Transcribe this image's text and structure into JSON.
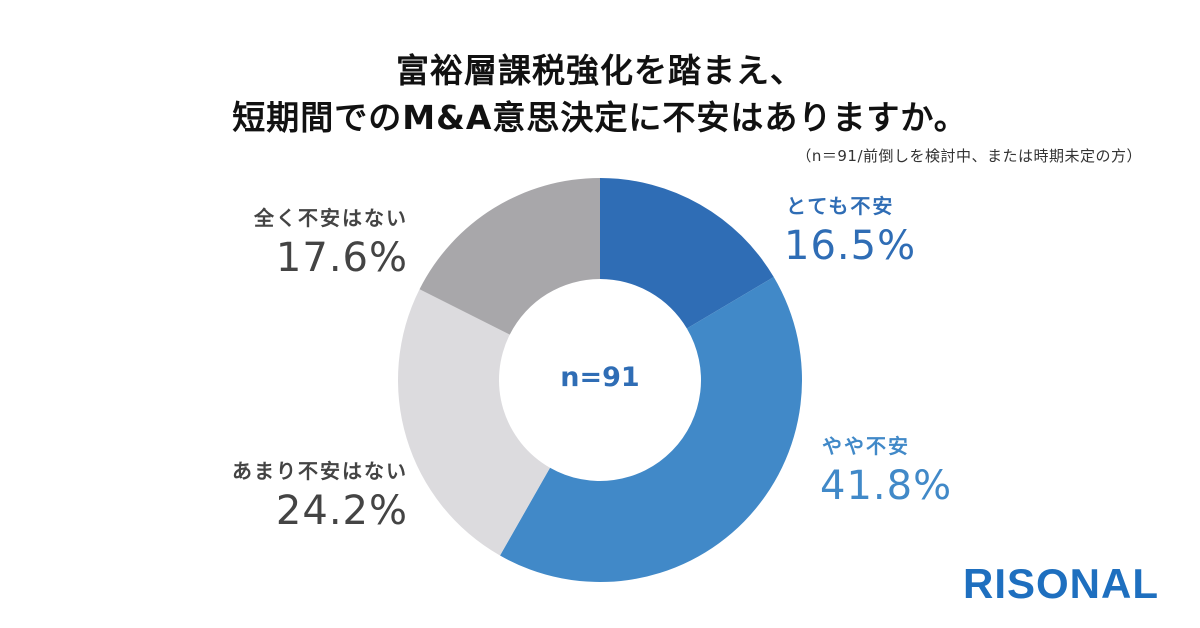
{
  "header": {
    "title_line1": "富裕層課税強化を踏まえ、",
    "title_line2": "短期間でのM&A意思決定に不安はありますか。",
    "note": "（n＝91/前倒しを検討中、または時期未定の方）"
  },
  "center_label": "n=91",
  "logo": "RISONAL",
  "colors": {
    "very_anxious": "#2F6DB5",
    "somewhat_anxious": "#4189C8",
    "not_very_anxious": "#DCDBDE",
    "not_at_all_anxious": "#A8A7AA"
  },
  "labels": [
    {
      "category": "とても不安",
      "percent": "16.5%"
    },
    {
      "category": "やや不安",
      "percent": "41.8%"
    },
    {
      "category": "あまり不安はない",
      "percent": "24.2%"
    },
    {
      "category": "全く不安はない",
      "percent": "17.6%"
    }
  ],
  "chart_data": {
    "type": "pie",
    "variant": "donut",
    "title": "富裕層課税強化を踏まえ、短期間でのM&A意思決定に不安はありますか。",
    "subtitle": "（n＝91/前倒しを検討中、または時期未定の方）",
    "center_text": "n=91",
    "start_angle": "12 o'clock, clockwise",
    "categories": [
      "とても不安",
      "やや不安",
      "あまり不安はない",
      "全く不安はない"
    ],
    "values": [
      16.5,
      41.8,
      24.2,
      17.6
    ],
    "unit": "%",
    "colors": [
      "#2F6DB5",
      "#4189C8",
      "#DCDBDE",
      "#A8A7AA"
    ],
    "legend": "direct labels beside slices"
  }
}
